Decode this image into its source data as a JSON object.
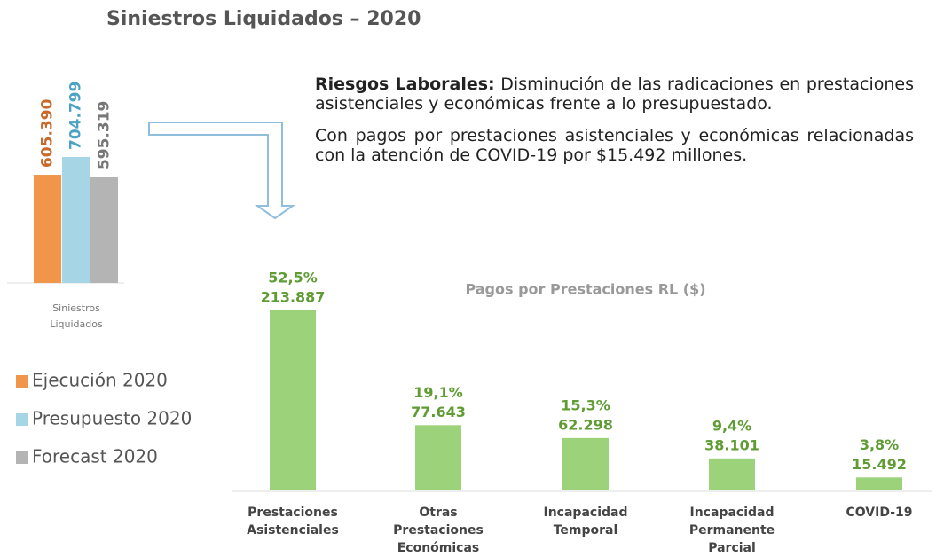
{
  "title": "Siniestros Liquidados – 2020",
  "text": {
    "heading": "Riesgos Laborales:",
    "paragraphs": [
      "Disminución de las radicaciones en prestaciones asistenciales y económicas frente a lo presupuestado.",
      "Con pagos por prestaciones asistenciales y económicas relacionadas con la atención de COVID-19 por $15.492 millones."
    ]
  },
  "chart_data": [
    {
      "type": "bar",
      "categories": [
        "Siniestros Liquidados"
      ],
      "series": [
        {
          "name": "Ejecución 2020",
          "color": "#f0954a",
          "values": [
            605390
          ],
          "value_labels": [
            "605.390"
          ]
        },
        {
          "name": "Presupuesto 2020",
          "color": "#a6d6e6",
          "values": [
            704799
          ],
          "value_labels": [
            "704.799"
          ]
        },
        {
          "name": "Forecast 2020",
          "color": "#b4b4b4",
          "values": [
            595319
          ],
          "value_labels": [
            "595.319"
          ]
        }
      ],
      "legend": "bottom-left"
    },
    {
      "type": "bar",
      "title": "Pagos por Prestaciones RL ($)",
      "categories": [
        "Prestaciones Asistenciales",
        "Otras Prestaciones Económicas",
        "Incapacidad Temporal",
        "Incapacidad Permanente Parcial",
        "COVID-19"
      ],
      "values": [
        213887,
        77643,
        62298,
        38101,
        15492
      ],
      "value_labels": [
        "213.887",
        "77.643",
        "62.298",
        "38.101",
        "15.492"
      ],
      "shares": [
        52.5,
        19.1,
        15.3,
        9.4,
        3.8
      ],
      "share_labels": [
        "52,5%",
        "19,1%",
        "15,3%",
        "9,4%",
        "3,8%"
      ],
      "color": "#9bd27a"
    }
  ]
}
